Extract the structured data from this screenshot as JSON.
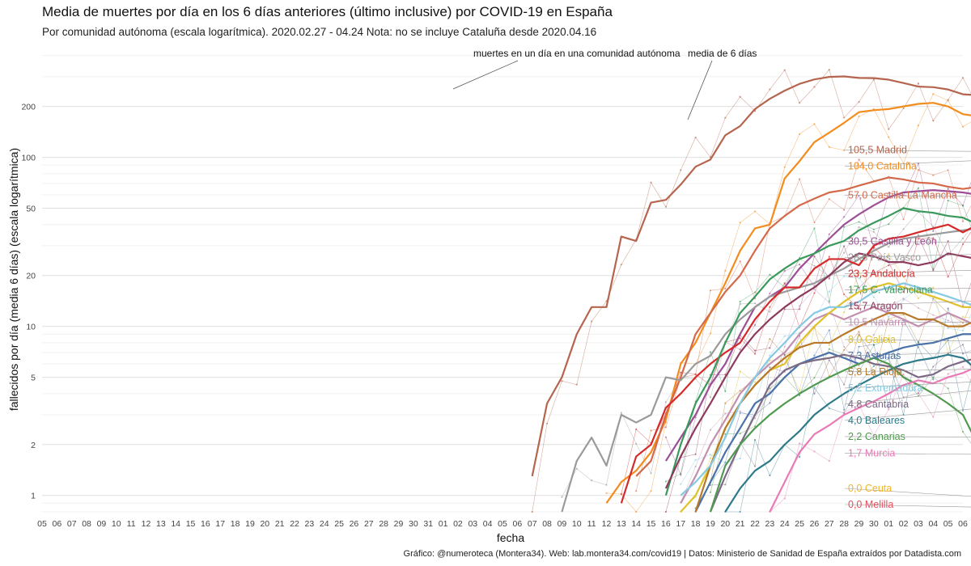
{
  "title": "Media de muertes por día en los 6 días anteriores (último inclusive) por COVID-19 en España",
  "subtitle": "Por comunidad autónoma (escala logarítmica). 2020.02.27 - 04.24 Nota: no se incluye Cataluña desde 2020.04.16",
  "caption": "Gráfico: @numeroteca (Montera34). Web: lab.montera34.com/covid19 | Datos: Ministerio de Sanidad de España extraídos por Datadista.com",
  "chart_data": {
    "type": "line",
    "title": "Media de muertes por día en los 6 días anteriores (último inclusive) por COVID-19 en España",
    "subtitle": "Por comunidad autónoma (escala logarítmica). 2020.02.27 - 04.24 Nota: no se incluye Cataluña desde 2020.04.16",
    "xlabel": "fecha",
    "ylabel": "fallecidos por día (media 6 días) (escala logarítmica)",
    "y_scale": "log",
    "ylim": [
      0.8,
      450
    ],
    "y_ticks": [
      1,
      2,
      5,
      10,
      20,
      50,
      100,
      200
    ],
    "grid": true,
    "legend": "end-of-line labels",
    "x_tick_labels": [
      "05",
      "06",
      "07",
      "08",
      "09",
      "10",
      "11",
      "12",
      "13",
      "14",
      "15",
      "16",
      "17",
      "18",
      "19",
      "20",
      "21",
      "22",
      "23",
      "24",
      "25",
      "26",
      "27",
      "28",
      "29",
      "30",
      "31",
      "01",
      "02",
      "03",
      "04",
      "05",
      "06",
      "07",
      "08",
      "09",
      "10",
      "11",
      "12",
      "13",
      "14",
      "15",
      "16",
      "17",
      "18",
      "19",
      "20",
      "21",
      "22",
      "23",
      "24",
      "25",
      "26",
      "27",
      "28",
      "29",
      "30",
      "01",
      "02",
      "03",
      "04",
      "05",
      "06"
    ],
    "annotations": [
      "muertes en un día en una comunidad autónoma",
      "media de 6 días"
    ],
    "series": [
      {
        "name": "105,5 Madrid",
        "color": "#b5654d",
        "start": "03-09",
        "values": [
          1.3,
          3.5,
          5,
          9,
          13,
          13,
          34,
          32,
          54,
          56,
          69,
          88,
          97,
          135,
          153,
          193,
          222,
          248,
          272,
          289,
          299,
          301,
          295,
          294,
          288,
          275,
          262,
          260,
          252,
          236,
          233,
          213,
          193,
          193,
          178,
          165,
          156,
          153,
          155,
          143,
          134,
          127,
          119,
          114,
          105.5
        ]
      },
      {
        "name": "104,0 Cataluña",
        "color": "#f28c1d",
        "start": "03-14",
        "values": [
          0.9,
          1.2,
          1.4,
          1.8,
          2.8,
          6,
          8,
          12,
          18,
          28,
          38,
          40,
          75,
          95,
          123,
          140,
          160,
          185,
          190,
          193,
          200,
          207,
          210,
          200,
          180,
          175,
          155,
          135,
          115,
          107,
          100,
          101,
          99,
          101,
          104.0
        ]
      },
      {
        "name": "57,0 Castilla-La Mancha",
        "color": "#d4694a",
        "start": "03-16",
        "values": [
          1.3,
          1.6,
          3,
          5,
          9,
          12,
          16,
          20,
          28,
          38,
          45,
          52,
          57,
          62,
          64,
          68,
          72,
          76,
          74,
          71,
          70,
          67,
          65,
          67,
          71,
          74,
          73,
          68,
          71,
          75,
          72,
          62,
          62,
          62,
          56,
          51,
          53,
          56,
          55,
          57.0
        ]
      },
      {
        "name": "30,5 Castilla y León",
        "color": "#9c4f96",
        "start": "03-18",
        "values": [
          1.6,
          2.2,
          3,
          4.5,
          6,
          9,
          13,
          15,
          17,
          22,
          27,
          33,
          40,
          46,
          52,
          58,
          62,
          63,
          64,
          63,
          62,
          60,
          56,
          52,
          49,
          46,
          43,
          40,
          38,
          36,
          34,
          33,
          32,
          32,
          31,
          31,
          30,
          29,
          30.5
        ]
      },
      {
        "name": "28,8 País Vasco",
        "color": "#9a9a9a",
        "start": "03-11",
        "values": [
          0.8,
          1.6,
          2.2,
          1.5,
          3,
          2.7,
          3,
          5,
          4.8,
          6,
          6.7,
          9,
          11,
          13,
          15,
          16,
          17,
          18,
          20,
          22,
          25,
          28,
          31,
          33,
          34,
          35,
          36,
          37,
          38,
          38,
          39,
          40,
          41,
          42,
          41,
          38,
          36,
          35,
          36,
          38,
          35,
          32,
          30,
          29,
          28.8
        ]
      },
      {
        "name": "23,3 Andalucía",
        "color": "#d42a2a",
        "start": "03-15",
        "values": [
          0.9,
          1.7,
          2,
          3.3,
          4,
          5,
          6,
          7,
          8,
          11,
          14,
          17,
          17,
          22,
          25,
          25,
          23,
          30,
          33,
          34,
          36,
          38,
          40,
          36,
          40,
          44,
          45,
          44,
          50,
          47,
          40,
          35,
          32,
          30,
          29,
          28,
          26,
          24,
          23,
          23.3
        ]
      },
      {
        "name": "17,5 C. Valenciana",
        "color": "#3a9a5c",
        "start": "03-18",
        "values": [
          1,
          2,
          3.5,
          5,
          8,
          12,
          15,
          19,
          22,
          25,
          27,
          30,
          32,
          37,
          41,
          45,
          50,
          48,
          47,
          45,
          44,
          40,
          37,
          35,
          34,
          33,
          31,
          30,
          29,
          32,
          29,
          27,
          25,
          23,
          21,
          19,
          17.5
        ]
      },
      {
        "name": "15,7 Aragón",
        "color": "#8e3a5c",
        "start": "03-18",
        "values": [
          1.1,
          1.7,
          2.5,
          3.5,
          5,
          7,
          9,
          11,
          13,
          15,
          17,
          20,
          24,
          27,
          26,
          24,
          24,
          23,
          24,
          27,
          26,
          25,
          24,
          23,
          22,
          21,
          22,
          24,
          25,
          24,
          22,
          20,
          19,
          17,
          15.7
        ]
      },
      {
        "name": "10,5 Navarra",
        "color": "#c28fb0",
        "start": "03-19",
        "values": [
          0.9,
          1.3,
          2,
          2.8,
          4,
          5,
          6,
          7,
          9,
          11,
          12,
          11,
          12,
          13,
          12,
          11,
          10,
          11,
          12,
          11,
          10,
          9,
          8,
          10,
          12,
          15,
          18,
          20,
          21,
          22,
          22,
          19,
          17,
          12,
          10.5
        ]
      },
      {
        "name": "8,0 Galicia",
        "color": "#e0c12a",
        "start": "03-19",
        "values": [
          0.8,
          1,
          1.5,
          2.5,
          3.5,
          4.5,
          5.5,
          6,
          8,
          10,
          12,
          14,
          16,
          17,
          18,
          17,
          16,
          15,
          14,
          13,
          13,
          12,
          11,
          10,
          9.5,
          10,
          10,
          9.5,
          9,
          8.5,
          8.0
        ]
      },
      {
        "name": "7,3 Asturias",
        "color": "#4a72a8",
        "start": "03-20",
        "values": [
          0.8,
          1.2,
          1.8,
          2.5,
          3.5,
          4,
          5,
          6,
          6.5,
          7,
          6.5,
          6,
          6.5,
          7,
          7.5,
          7.8,
          8,
          8.5,
          9,
          9,
          9.5,
          9,
          8.5,
          8,
          7.8,
          7.5,
          7.8,
          7.3
        ]
      },
      {
        "name": "5,8 La Rioja",
        "color": "#b8782a",
        "start": "03-20",
        "values": [
          0.8,
          1.5,
          2.5,
          3.5,
          4.5,
          5.5,
          6.5,
          7.5,
          8,
          8,
          9,
          10,
          11,
          12,
          12,
          11,
          11,
          10,
          10,
          11,
          10,
          9,
          9,
          8.5,
          8,
          7,
          6.5,
          5.8
        ]
      },
      {
        "name": "5,2 Extremadura",
        "color": "#85c9e3",
        "start": "03-19",
        "values": [
          1,
          1.2,
          1.5,
          2.2,
          3.5,
          5,
          6.5,
          8,
          10,
          12,
          13,
          13,
          14,
          16,
          17,
          18,
          17,
          16,
          15,
          14,
          13,
          12,
          11,
          11,
          10,
          10,
          9.5,
          8.5,
          7,
          6,
          5.2
        ]
      },
      {
        "name": "4,8 Cantabria",
        "color": "#7c6a84",
        "start": "03-21",
        "values": [
          0.8,
          1.3,
          2,
          3,
          4.5,
          5.5,
          6,
          6.3,
          6.5,
          6.8,
          6.5,
          6,
          5.8,
          5.5,
          5,
          5.2,
          5.8,
          6.2,
          6.5,
          6.3,
          6.8,
          6.5,
          5.8,
          5.2,
          4.8
        ]
      },
      {
        "name": "4,0 Baleares",
        "color": "#2f7a8a",
        "start": "03-22",
        "values": [
          0.8,
          1.1,
          1.4,
          1.6,
          2,
          2.4,
          3,
          3.5,
          4,
          4.5,
          5,
          5.5,
          6,
          6.3,
          6.5,
          6.8,
          6.5,
          5.5,
          5,
          5.2,
          5.4,
          5.5,
          5.6,
          5.4,
          5.2,
          5.5,
          5,
          4.5,
          4.0
        ]
      },
      {
        "name": "2,2 Canarias",
        "color": "#4f9a4f",
        "start": "03-21",
        "values": [
          0.8,
          1.5,
          2,
          2.5,
          3,
          3.5,
          4,
          4.5,
          5,
          5.5,
          6,
          6.5,
          6,
          5,
          4.5,
          4,
          3.5,
          3,
          2,
          1.2,
          1.8,
          2,
          2.2,
          2.8,
          3.3,
          3.8,
          2.8,
          2.6,
          2.2,
          1.8,
          2.2
        ]
      },
      {
        "name": "1,7 Murcia",
        "color": "#e87ab5",
        "start": "03-25",
        "values": [
          0.8,
          1.2,
          1.8,
          2.3,
          2.6,
          3,
          3.3,
          3.6,
          4,
          4.5,
          4.8,
          4.6,
          5,
          5.3,
          5.8,
          6.5,
          7,
          6.8,
          6,
          5,
          4,
          3.5,
          3.4,
          3.2,
          3,
          2.8,
          2.5,
          2.2,
          1.8,
          1.8,
          2,
          1.7
        ]
      },
      {
        "name": "0,0 Ceuta",
        "color": "#f0b429",
        "start": "04-24",
        "values": [
          0.0
        ]
      },
      {
        "name": "0,0 Melilla",
        "color": "#e45060",
        "start": "04-24",
        "values": [
          0.0
        ]
      }
    ]
  }
}
